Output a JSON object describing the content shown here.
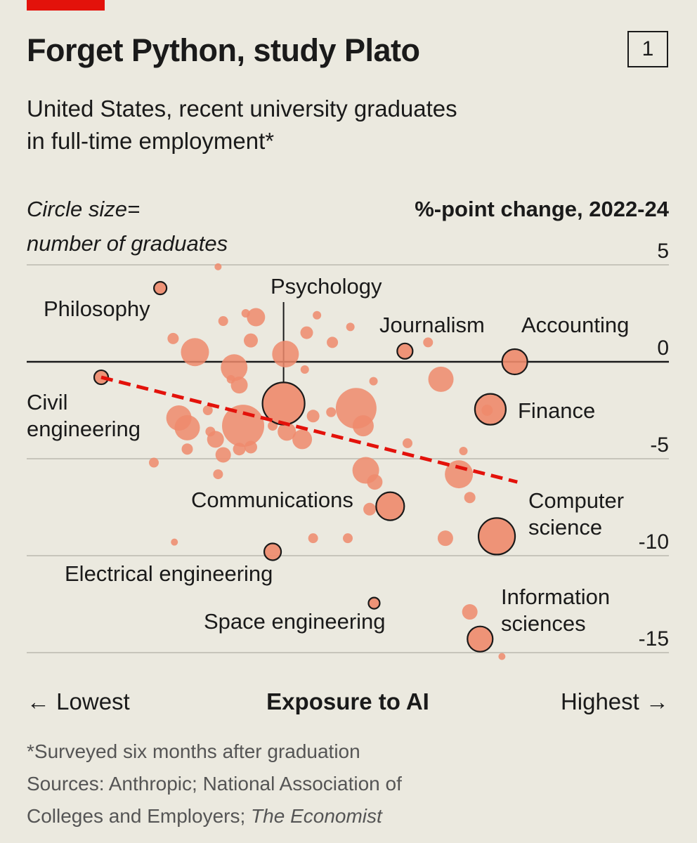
{
  "header": {
    "title": "Forget Python, study Plato",
    "figure_number": "1",
    "subtitle_line1": "United States, recent university graduates",
    "subtitle_line2": "in full-time employment*"
  },
  "chart_data": {
    "type": "scatter",
    "circle_note_line1": "Circle size=",
    "circle_note_line2": "number of graduates",
    "ylabel": "%-point change, 2022-24",
    "xlabel": "Exposure to AI",
    "x_low_label": "← Lowest",
    "x_high_label": "Highest →",
    "xlim": [
      0,
      100
    ],
    "ylim": [
      -15.5,
      5
    ],
    "y_ticks": [
      {
        "value": 5,
        "label": "5"
      },
      {
        "value": 0,
        "label": "0"
      },
      {
        "value": -5,
        "label": "-5"
      },
      {
        "value": -10,
        "label": "-10"
      },
      {
        "value": -15,
        "label": "-15"
      }
    ],
    "zero_line": 0,
    "trend": {
      "x1": 11.6,
      "y1": -0.8,
      "x2": 76.4,
      "y2": -6.2,
      "color": "#e3120b"
    },
    "highlighted": [
      {
        "label_lines": [
          "Philosophy"
        ],
        "x": 20.8,
        "y": 3.8,
        "size": 9
      },
      {
        "label_lines": [
          "Psychology"
        ],
        "x": 40.0,
        "y": -2.15,
        "size": 30
      },
      {
        "label_lines": [
          "Journalism"
        ],
        "x": 58.9,
        "y": 0.55,
        "size": 11
      },
      {
        "label_lines": [
          "Accounting"
        ],
        "x": 76.0,
        "y": 0.0,
        "size": 18
      },
      {
        "label_lines": [
          "Civil",
          "engineering"
        ],
        "x": 11.6,
        "y": -0.8,
        "size": 10
      },
      {
        "label_lines": [
          "Finance"
        ],
        "x": 72.2,
        "y": -2.45,
        "size": 22
      },
      {
        "label_lines": [
          "Communications"
        ],
        "x": 56.6,
        "y": -7.45,
        "size": 20
      },
      {
        "label_lines": [
          "Computer",
          "science"
        ],
        "x": 73.2,
        "y": -9.0,
        "size": 26
      },
      {
        "label_lines": [
          "Electrical engineering"
        ],
        "x": 38.3,
        "y": -9.8,
        "size": 12
      },
      {
        "label_lines": [
          "Space engineering"
        ],
        "x": 54.1,
        "y": -12.45,
        "size": 8
      },
      {
        "label_lines": [
          "Information",
          "sciences"
        ],
        "x": 70.6,
        "y": -14.3,
        "size": 18
      }
    ],
    "others": [
      {
        "x": 29.8,
        "y": 4.9,
        "size": 5
      },
      {
        "x": 34.1,
        "y": 2.5,
        "size": 6
      },
      {
        "x": 35.7,
        "y": 2.3,
        "size": 13
      },
      {
        "x": 30.6,
        "y": 2.1,
        "size": 7
      },
      {
        "x": 43.6,
        "y": 1.5,
        "size": 9
      },
      {
        "x": 45.2,
        "y": 2.4,
        "size": 6
      },
      {
        "x": 50.4,
        "y": 1.8,
        "size": 6
      },
      {
        "x": 22.8,
        "y": 1.2,
        "size": 8
      },
      {
        "x": 34.9,
        "y": 1.1,
        "size": 10
      },
      {
        "x": 47.6,
        "y": 1.0,
        "size": 8
      },
      {
        "x": 62.5,
        "y": 1.0,
        "size": 7
      },
      {
        "x": 26.2,
        "y": 0.5,
        "size": 20
      },
      {
        "x": 40.3,
        "y": 0.4,
        "size": 19
      },
      {
        "x": 32.3,
        "y": -0.3,
        "size": 19
      },
      {
        "x": 43.3,
        "y": -0.4,
        "size": 6
      },
      {
        "x": 31.8,
        "y": -0.9,
        "size": 6
      },
      {
        "x": 54.0,
        "y": -1.0,
        "size": 6
      },
      {
        "x": 33.1,
        "y": -1.2,
        "size": 12
      },
      {
        "x": 64.5,
        "y": -0.9,
        "size": 18
      },
      {
        "x": 28.2,
        "y": -2.5,
        "size": 7
      },
      {
        "x": 47.4,
        "y": -2.6,
        "size": 7
      },
      {
        "x": 51.3,
        "y": -2.4,
        "size": 29
      },
      {
        "x": 44.6,
        "y": -2.8,
        "size": 9
      },
      {
        "x": 71.7,
        "y": -2.5,
        "size": 8
      },
      {
        "x": 23.7,
        "y": -2.9,
        "size": 18
      },
      {
        "x": 25.0,
        "y": -3.4,
        "size": 18
      },
      {
        "x": 28.6,
        "y": -3.6,
        "size": 7
      },
      {
        "x": 33.7,
        "y": -3.3,
        "size": 30
      },
      {
        "x": 38.3,
        "y": -3.3,
        "size": 7
      },
      {
        "x": 40.5,
        "y": -3.6,
        "size": 13
      },
      {
        "x": 52.4,
        "y": -3.3,
        "size": 15
      },
      {
        "x": 29.4,
        "y": -4.0,
        "size": 12
      },
      {
        "x": 42.9,
        "y": -4.0,
        "size": 14
      },
      {
        "x": 33.1,
        "y": -4.5,
        "size": 9
      },
      {
        "x": 25.0,
        "y": -4.5,
        "size": 8
      },
      {
        "x": 34.9,
        "y": -4.4,
        "size": 9
      },
      {
        "x": 30.6,
        "y": -4.8,
        "size": 11
      },
      {
        "x": 59.3,
        "y": -4.2,
        "size": 7
      },
      {
        "x": 68.0,
        "y": -4.6,
        "size": 6
      },
      {
        "x": 19.8,
        "y": -5.2,
        "size": 7
      },
      {
        "x": 29.8,
        "y": -5.8,
        "size": 7
      },
      {
        "x": 52.8,
        "y": -5.6,
        "size": 19
      },
      {
        "x": 67.3,
        "y": -5.8,
        "size": 20
      },
      {
        "x": 54.2,
        "y": -6.2,
        "size": 11
      },
      {
        "x": 69.0,
        "y": -7.0,
        "size": 8
      },
      {
        "x": 53.4,
        "y": -7.6,
        "size": 9
      },
      {
        "x": 23.0,
        "y": -9.3,
        "size": 5
      },
      {
        "x": 44.6,
        "y": -9.1,
        "size": 7
      },
      {
        "x": 50.0,
        "y": -9.1,
        "size": 7
      },
      {
        "x": 65.2,
        "y": -9.1,
        "size": 11
      },
      {
        "x": 69.0,
        "y": -12.9,
        "size": 11
      },
      {
        "x": 74.0,
        "y": -15.2,
        "size": 5
      }
    ]
  },
  "footnote": {
    "line1": "*Surveyed six months after graduation",
    "line2": "Sources: Anthropic; National Association of",
    "line3_prefix": "Colleges and Employers; ",
    "line3_italic": "The Economist"
  },
  "colors": {
    "accent_red": "#e3120b",
    "bubble_fill": "#ee8a6c",
    "background": "#ebe9df",
    "gridline": "#c7c5bb"
  }
}
